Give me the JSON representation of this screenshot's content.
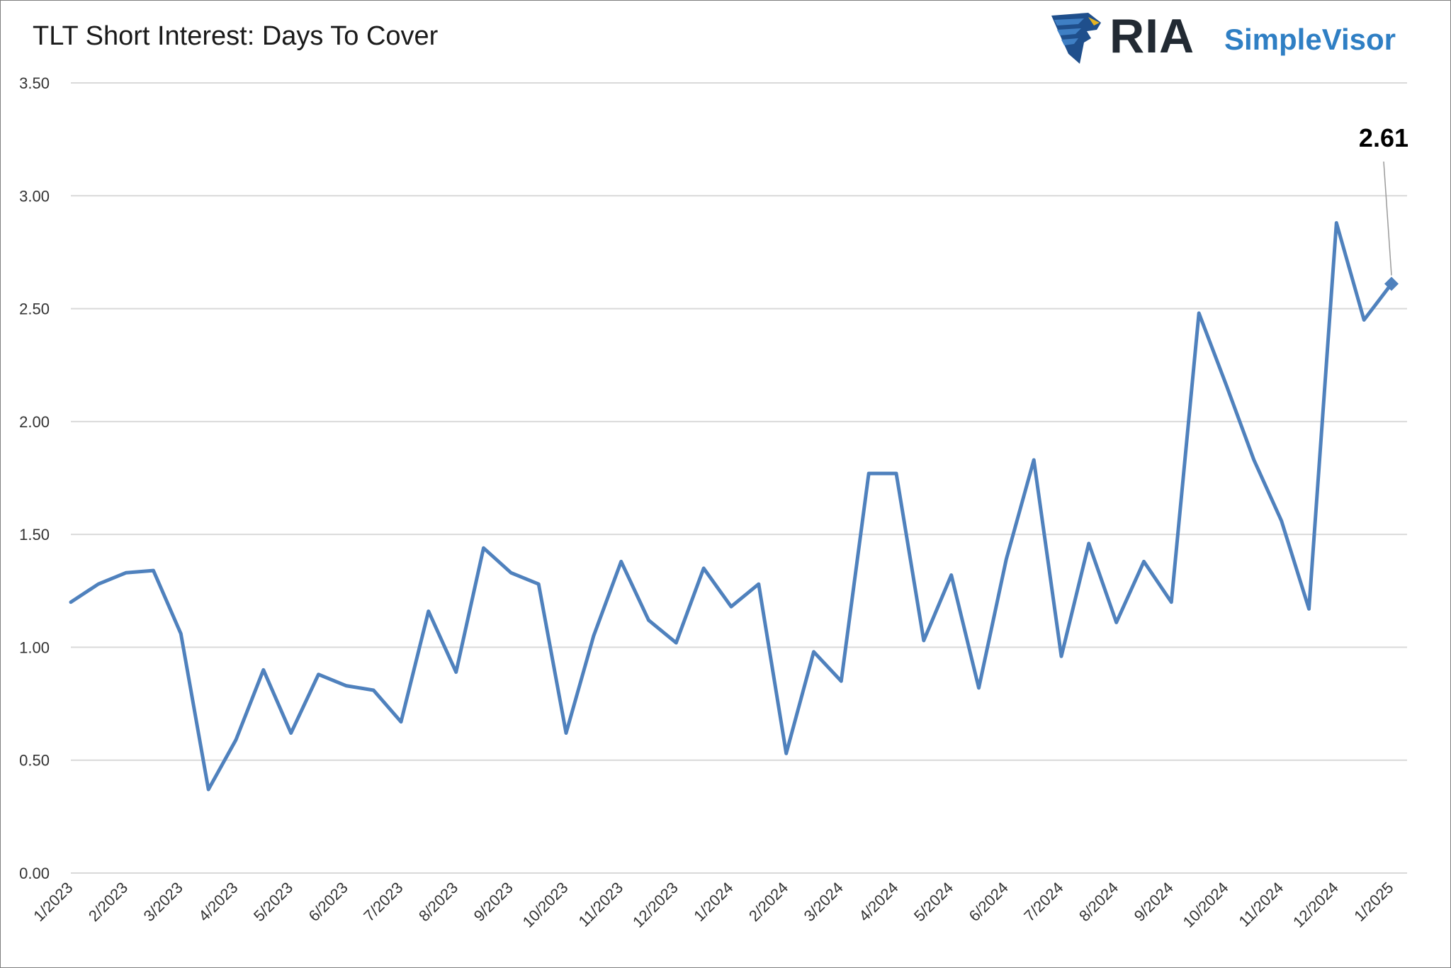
{
  "title": "TLT Short Interest: Days To Cover",
  "logo": {
    "primary_text": "RIA",
    "secondary_text": "SimpleVisor",
    "emblem": "eagle-head-icon",
    "colors": {
      "primary": "#222a33",
      "secondary": "#2f7fc4"
    }
  },
  "chart_data": {
    "type": "line",
    "title": "TLT Short Interest: Days To Cover",
    "xlabel": "",
    "ylabel": "",
    "ylim": [
      0,
      3.5
    ],
    "yticks": [
      "0.00",
      "0.50",
      "1.00",
      "1.50",
      "2.00",
      "2.50",
      "3.00",
      "3.50"
    ],
    "grid": true,
    "legend": "none",
    "x_tick_labels": [
      "1/2023",
      "2/2023",
      "3/2023",
      "4/2023",
      "5/2023",
      "6/2023",
      "7/2023",
      "8/2023",
      "9/2023",
      "10/2023",
      "11/2023",
      "12/2023",
      "1/2024",
      "2/2024",
      "3/2024",
      "4/2024",
      "5/2024",
      "6/2024",
      "7/2024",
      "8/2024",
      "9/2024",
      "10/2024",
      "11/2024",
      "12/2024",
      "1/2025"
    ],
    "series": [
      {
        "color": "#4f81bd",
        "values": [
          1.2,
          1.28,
          1.33,
          1.34,
          1.06,
          0.37,
          0.59,
          0.9,
          0.62,
          0.88,
          0.83,
          0.81,
          0.67,
          1.16,
          0.89,
          1.44,
          1.33,
          1.28,
          0.62,
          1.05,
          1.38,
          1.12,
          1.02,
          1.35,
          1.18,
          1.28,
          0.53,
          0.98,
          0.85,
          1.77,
          1.77,
          1.03,
          1.32,
          0.82,
          1.39,
          1.83,
          0.96,
          1.46,
          1.11,
          1.38,
          1.2,
          2.48,
          2.16,
          1.83,
          1.56,
          1.17,
          2.88,
          2.45,
          2.61
        ]
      }
    ],
    "annotation": {
      "text": "2.61",
      "value": 2.61
    }
  }
}
